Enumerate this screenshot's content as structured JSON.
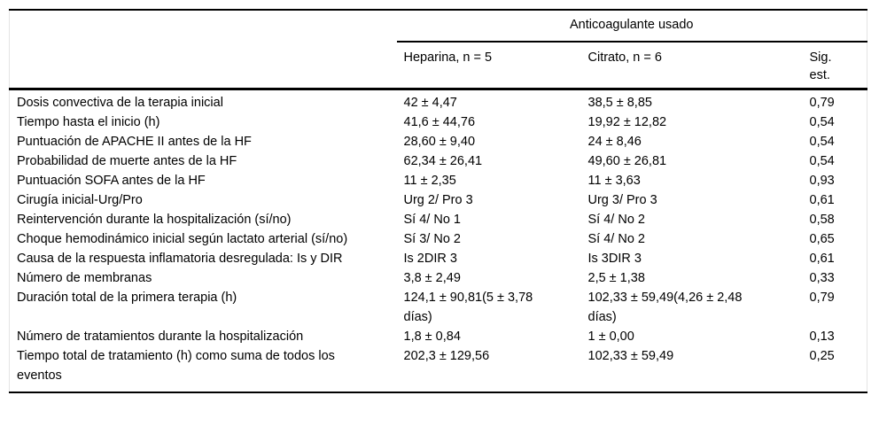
{
  "table": {
    "span_header": "Anticoagulante usado",
    "columns": {
      "rowlabel": "",
      "heparina": "Heparina, n = 5",
      "citrato": "Citrato, n = 6",
      "sig": "Sig. est."
    },
    "rows": [
      {
        "label": "Dosis convectiva de la terapia inicial",
        "heparina": "42 ± 4,47",
        "citrato": "38,5 ± 8,85",
        "sig": "0,79"
      },
      {
        "label": "Tiempo hasta el inicio (h)",
        "heparina": "41,6 ± 44,76",
        "citrato": "19,92 ± 12,82",
        "sig": "0,54"
      },
      {
        "label": "Puntuación de APACHE II antes de la HF",
        "heparina": "28,60 ± 9,40",
        "citrato": "24 ± 8,46",
        "sig": "0,54"
      },
      {
        "label": "Probabilidad de muerte antes de la HF",
        "heparina": "62,34 ± 26,41",
        "citrato": "49,60 ± 26,81",
        "sig": "0,54"
      },
      {
        "label": "Puntuación SOFA antes de la HF",
        "heparina": "11 ± 2,35",
        "citrato": "11 ± 3,63",
        "sig": "0,93"
      },
      {
        "label": "Cirugía inicial-Urg/Pro",
        "heparina": "Urg 2/ Pro 3",
        "citrato": "Urg 3/ Pro 3",
        "sig": "0,61"
      },
      {
        "label": "Reintervención durante la hospitalización (sí/no)",
        "heparina": "Sí 4/ No 1",
        "citrato": "Sí 4/ No 2",
        "sig": "0,58"
      },
      {
        "label": "Choque hemodinámico inicial según lactato arterial (sí/no)",
        "heparina": "Sí 3/ No 2",
        "citrato": "Sí 4/ No 2",
        "sig": "0,65"
      },
      {
        "label": "Causa de la respuesta inflamatoria desregulada: Is y DIR",
        "heparina": "Is 2DIR 3",
        "citrato": "Is 3DIR 3",
        "sig": "0,61"
      },
      {
        "label": "Número de membranas",
        "heparina": "3,8 ± 2,49",
        "citrato": "2,5 ± 1,38",
        "sig": "0,33"
      },
      {
        "label": "Duración total de la primera terapia (h)",
        "heparina": "124,1 ± 90,81(5 ± 3,78 días)",
        "citrato": "102,33 ± 59,49(4,26 ± 2,48 días)",
        "sig": "0,79"
      },
      {
        "label": "Número de tratamientos durante la hospitalización",
        "heparina": "1,8 ± 0,84",
        "citrato": "1 ± 0,00",
        "sig": "0,13"
      },
      {
        "label": "Tiempo total de tratamiento (h) como suma de todos los eventos",
        "heparina": "202,3 ± 129,56",
        "citrato": "102,33 ± 59,49",
        "sig": "0,25"
      }
    ]
  }
}
